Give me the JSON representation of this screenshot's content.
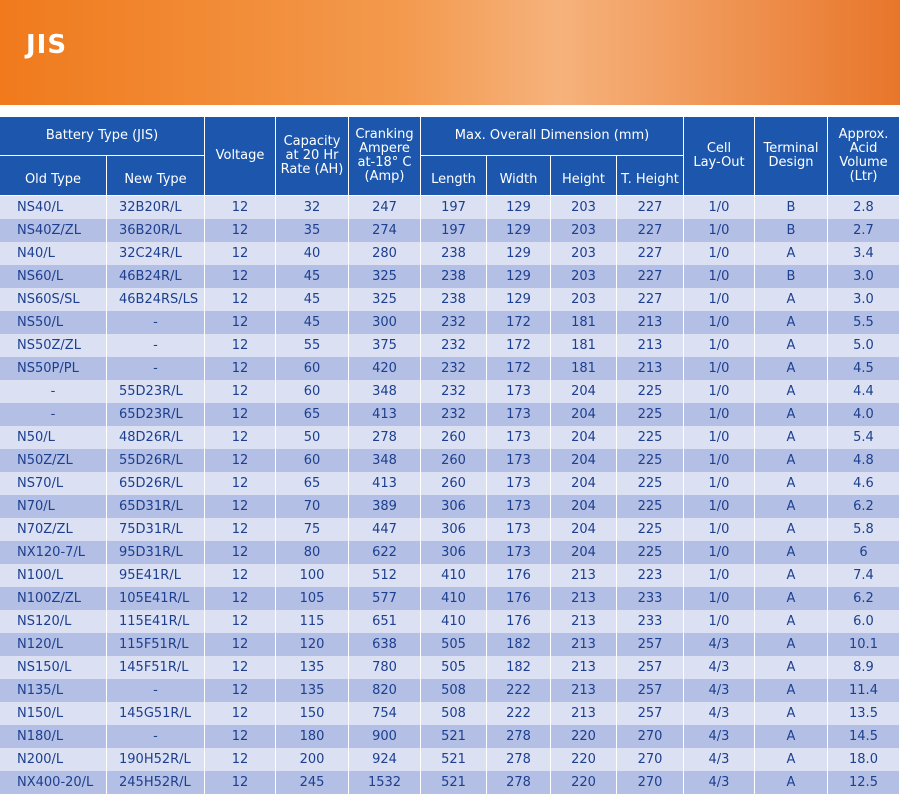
{
  "header": {
    "title": "JIS"
  },
  "table": {
    "groups": [
      {
        "label": "Battery Type (JIS)"
      },
      {
        "label": "Max. Overall Dimension (mm)"
      }
    ],
    "columns": [
      {
        "lines": [
          "Old Type"
        ]
      },
      {
        "lines": [
          "New Type"
        ]
      },
      {
        "lines": [
          "Voltage"
        ]
      },
      {
        "lines": [
          "Capacity",
          "at 20 Hr",
          "Rate (AH)"
        ]
      },
      {
        "lines": [
          "Cranking",
          "Ampere",
          "at-18° C",
          "(Amp)"
        ]
      },
      {
        "lines": [
          "Length"
        ]
      },
      {
        "lines": [
          "Width"
        ]
      },
      {
        "lines": [
          "Height"
        ]
      },
      {
        "lines": [
          "T. Height"
        ]
      },
      {
        "lines": [
          "Cell",
          "Lay-Out"
        ]
      },
      {
        "lines": [
          "Terminal",
          "Design"
        ]
      },
      {
        "lines": [
          "Approx.",
          "Acid",
          "Volume",
          "(Ltr)"
        ]
      }
    ],
    "rows": [
      [
        "NS40/L",
        "32B20R/L",
        "12",
        "32",
        "247",
        "197",
        "129",
        "203",
        "227",
        "1/0",
        "B",
        "2.8"
      ],
      [
        "NS40Z/ZL",
        "36B20R/L",
        "12",
        "35",
        "274",
        "197",
        "129",
        "203",
        "227",
        "1/0",
        "B",
        "2.7"
      ],
      [
        "N40/L",
        "32C24R/L",
        "12",
        "40",
        "280",
        "238",
        "129",
        "203",
        "227",
        "1/0",
        "A",
        "3.4"
      ],
      [
        "NS60/L",
        "46B24R/L",
        "12",
        "45",
        "325",
        "238",
        "129",
        "203",
        "227",
        "1/0",
        "B",
        "3.0"
      ],
      [
        "NS60S/SL",
        "46B24RS/LS",
        "12",
        "45",
        "325",
        "238",
        "129",
        "203",
        "227",
        "1/0",
        "A",
        "3.0"
      ],
      [
        "NS50/L",
        "-",
        "12",
        "45",
        "300",
        "232",
        "172",
        "181",
        "213",
        "1/0",
        "A",
        "5.5"
      ],
      [
        "NS50Z/ZL",
        "-",
        "12",
        "55",
        "375",
        "232",
        "172",
        "181",
        "213",
        "1/0",
        "A",
        "5.0"
      ],
      [
        "NS50P/PL",
        "-",
        "12",
        "60",
        "420",
        "232",
        "172",
        "181",
        "213",
        "1/0",
        "A",
        "4.5"
      ],
      [
        "-",
        "55D23R/L",
        "12",
        "60",
        "348",
        "232",
        "173",
        "204",
        "225",
        "1/0",
        "A",
        "4.4"
      ],
      [
        "-",
        "65D23R/L",
        "12",
        "65",
        "413",
        "232",
        "173",
        "204",
        "225",
        "1/0",
        "A",
        "4.0"
      ],
      [
        "N50/L",
        "48D26R/L",
        "12",
        "50",
        "278",
        "260",
        "173",
        "204",
        "225",
        "1/0",
        "A",
        "5.4"
      ],
      [
        "N50Z/ZL",
        "55D26R/L",
        "12",
        "60",
        "348",
        "260",
        "173",
        "204",
        "225",
        "1/0",
        "A",
        "4.8"
      ],
      [
        "NS70/L",
        "65D26R/L",
        "12",
        "65",
        "413",
        "260",
        "173",
        "204",
        "225",
        "1/0",
        "A",
        "4.6"
      ],
      [
        "N70/L",
        "65D31R/L",
        "12",
        "70",
        "389",
        "306",
        "173",
        "204",
        "225",
        "1/0",
        "A",
        "6.2"
      ],
      [
        "N70Z/ZL",
        "75D31R/L",
        "12",
        "75",
        "447",
        "306",
        "173",
        "204",
        "225",
        "1/0",
        "A",
        "5.8"
      ],
      [
        "NX120-7/L",
        "95D31R/L",
        "12",
        "80",
        "622",
        "306",
        "173",
        "204",
        "225",
        "1/0",
        "A",
        "6"
      ],
      [
        "N100/L",
        "95E41R/L",
        "12",
        "100",
        "512",
        "410",
        "176",
        "213",
        "223",
        "1/0",
        "A",
        "7.4"
      ],
      [
        "N100Z/ZL",
        "105E41R/L",
        "12",
        "105",
        "577",
        "410",
        "176",
        "213",
        "233",
        "1/0",
        "A",
        "6.2"
      ],
      [
        "NS120/L",
        "115E41R/L",
        "12",
        "115",
        "651",
        "410",
        "176",
        "213",
        "233",
        "1/0",
        "A",
        "6.0"
      ],
      [
        "N120/L",
        "115F51R/L",
        "12",
        "120",
        "638",
        "505",
        "182",
        "213",
        "257",
        "4/3",
        "A",
        "10.1"
      ],
      [
        "NS150/L",
        "145F51R/L",
        "12",
        "135",
        "780",
        "505",
        "182",
        "213",
        "257",
        "4/3",
        "A",
        "8.9"
      ],
      [
        "N135/L",
        "-",
        "12",
        "135",
        "820",
        "508",
        "222",
        "213",
        "257",
        "4/3",
        "A",
        "11.4"
      ],
      [
        "N150/L",
        "145G51R/L",
        "12",
        "150",
        "754",
        "508",
        "222",
        "213",
        "257",
        "4/3",
        "A",
        "13.5"
      ],
      [
        "N180/L",
        "-",
        "12",
        "180",
        "900",
        "521",
        "278",
        "220",
        "270",
        "4/3",
        "A",
        "14.5"
      ],
      [
        "N200/L",
        "190H52R/L",
        "12",
        "200",
        "924",
        "521",
        "278",
        "220",
        "270",
        "4/3",
        "A",
        "18.0"
      ],
      [
        "NX400-20/L",
        "245H52R/L",
        "12",
        "245",
        "1532",
        "521",
        "278",
        "220",
        "270",
        "4/3",
        "A",
        "12.5"
      ]
    ]
  }
}
